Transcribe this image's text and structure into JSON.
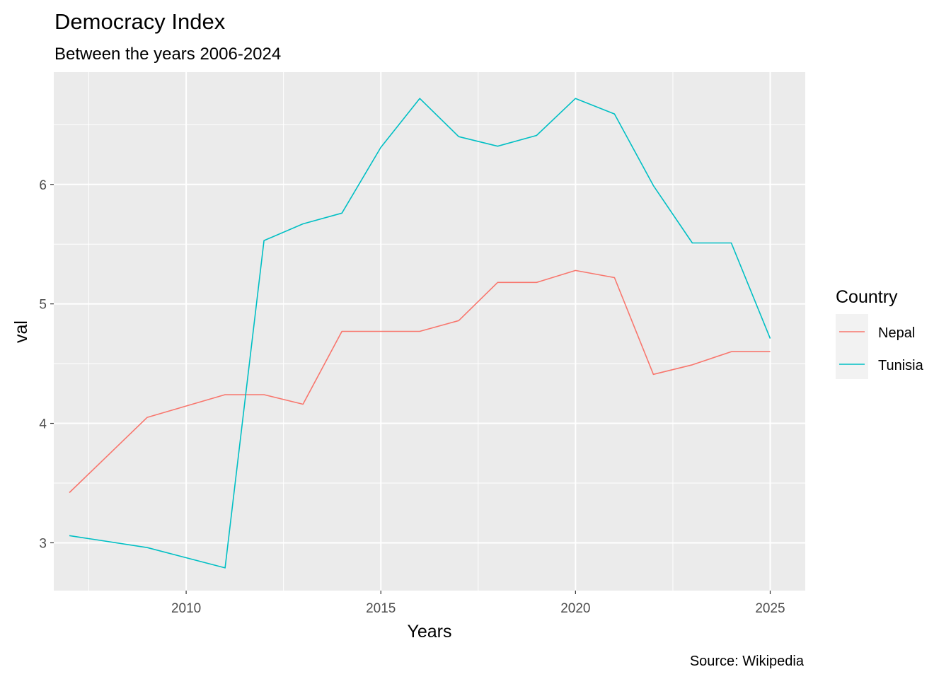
{
  "chart_data": {
    "type": "line",
    "title": "Democracy Index",
    "subtitle": "Between the years 2006-2024",
    "xlabel": "Years",
    "ylabel": "val",
    "caption": "Source: Wikipedia",
    "xlim": [
      2006.6,
      2025.9
    ],
    "ylim": [
      2.6,
      6.94
    ],
    "x_ticks": [
      2010,
      2015,
      2020,
      2025
    ],
    "y_ticks": [
      3,
      4,
      5,
      6
    ],
    "grid": true,
    "legend": {
      "title": "Country",
      "position": "right"
    },
    "series": [
      {
        "name": "Nepal",
        "color": "#F8766D",
        "points": [
          {
            "x": 2007,
            "y": 3.42
          },
          {
            "x": 2009,
            "y": 4.05
          },
          {
            "x": 2011,
            "y": 4.24
          },
          {
            "x": 2012,
            "y": 4.24
          },
          {
            "x": 2013,
            "y": 4.16
          },
          {
            "x": 2014,
            "y": 4.77
          },
          {
            "x": 2015,
            "y": 4.77
          },
          {
            "x": 2016,
            "y": 4.77
          },
          {
            "x": 2017,
            "y": 4.86
          },
          {
            "x": 2018,
            "y": 5.18
          },
          {
            "x": 2019,
            "y": 5.18
          },
          {
            "x": 2020,
            "y": 5.28
          },
          {
            "x": 2021,
            "y": 5.22
          },
          {
            "x": 2022,
            "y": 4.41
          },
          {
            "x": 2023,
            "y": 4.49
          },
          {
            "x": 2024,
            "y": 4.6
          },
          {
            "x": 2025,
            "y": 4.6
          }
        ]
      },
      {
        "name": "Tunisia",
        "color": "#00BFC4",
        "points": [
          {
            "x": 2007,
            "y": 3.06
          },
          {
            "x": 2009,
            "y": 2.96
          },
          {
            "x": 2011,
            "y": 2.79
          },
          {
            "x": 2012,
            "y": 5.53
          },
          {
            "x": 2013,
            "y": 5.67
          },
          {
            "x": 2014,
            "y": 5.76
          },
          {
            "x": 2015,
            "y": 6.31
          },
          {
            "x": 2016,
            "y": 6.72
          },
          {
            "x": 2017,
            "y": 6.4
          },
          {
            "x": 2018,
            "y": 6.32
          },
          {
            "x": 2019,
            "y": 6.41
          },
          {
            "x": 2020,
            "y": 6.72
          },
          {
            "x": 2021,
            "y": 6.59
          },
          {
            "x": 2022,
            "y": 5.99
          },
          {
            "x": 2023,
            "y": 5.51
          },
          {
            "x": 2024,
            "y": 5.51
          },
          {
            "x": 2025,
            "y": 4.71
          }
        ]
      }
    ]
  }
}
